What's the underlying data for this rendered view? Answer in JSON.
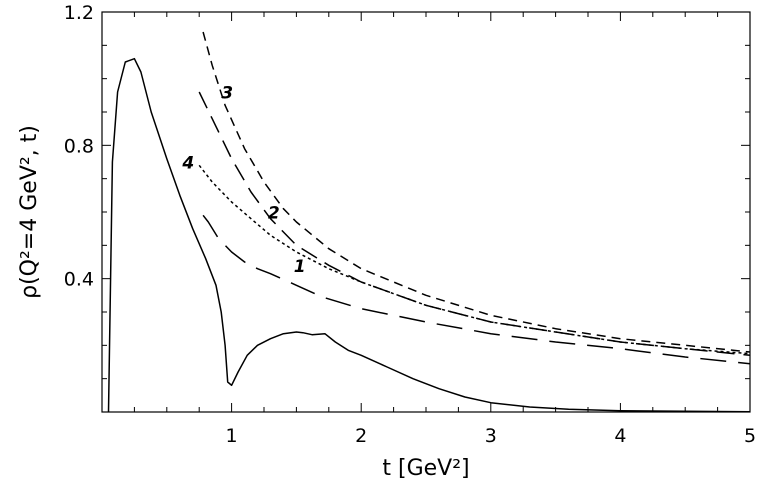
{
  "chart_data": {
    "type": "line",
    "xlabel": "t [GeV²]",
    "ylabel": "ρ(Q²=4 GeV², t)",
    "xlim": [
      0,
      5
    ],
    "ylim": [
      0,
      1.2
    ],
    "x_ticks": [
      1,
      2,
      3,
      4,
      5
    ],
    "x_tick_labels": [
      "1",
      "2",
      "3",
      "4",
      "5"
    ],
    "y_ticks": [
      0.4,
      0.8,
      1.2
    ],
    "y_tick_labels": [
      "0.4",
      "0.8",
      "1.2"
    ],
    "grid": false,
    "series": [
      {
        "name": "",
        "style": "solid",
        "x": [
          0.05,
          0.08,
          0.12,
          0.18,
          0.25,
          0.3,
          0.38,
          0.5,
          0.6,
          0.7,
          0.8,
          0.88,
          0.92,
          0.95,
          0.97,
          1.0,
          1.05,
          1.12,
          1.2,
          1.3,
          1.4,
          1.5,
          1.55,
          1.62,
          1.72,
          1.8,
          1.9,
          2.0,
          2.2,
          2.4,
          2.6,
          2.8,
          3.0,
          3.3,
          3.6,
          4.0,
          4.5,
          5.0
        ],
        "y": [
          0.0,
          0.75,
          0.96,
          1.05,
          1.06,
          1.02,
          0.9,
          0.76,
          0.65,
          0.55,
          0.46,
          0.38,
          0.3,
          0.2,
          0.09,
          0.08,
          0.12,
          0.17,
          0.2,
          0.22,
          0.235,
          0.24,
          0.238,
          0.232,
          0.235,
          0.21,
          0.185,
          0.17,
          0.135,
          0.1,
          0.07,
          0.045,
          0.028,
          0.015,
          0.008,
          0.004,
          0.002,
          0.001
        ]
      },
      {
        "name": "1",
        "style": "long-dash",
        "x": [
          0.78,
          0.82,
          0.9,
          1.0,
          1.1,
          1.2,
          1.3,
          1.5,
          1.7,
          2.0,
          2.5,
          3.0,
          3.5,
          4.0,
          4.5,
          5.0
        ],
        "y": [
          0.59,
          0.57,
          0.52,
          0.48,
          0.45,
          0.43,
          0.415,
          0.38,
          0.345,
          0.31,
          0.27,
          0.235,
          0.21,
          0.19,
          0.165,
          0.145
        ]
      },
      {
        "name": "2",
        "style": "dash",
        "x": [
          0.75,
          0.85,
          1.0,
          1.15,
          1.3,
          1.5,
          1.75,
          2.0,
          2.5,
          3.0,
          3.5,
          4.0,
          4.5,
          5.0
        ],
        "y": [
          0.96,
          0.88,
          0.76,
          0.66,
          0.58,
          0.5,
          0.44,
          0.39,
          0.32,
          0.27,
          0.24,
          0.21,
          0.19,
          0.17
        ]
      },
      {
        "name": "3",
        "style": "short-dash",
        "x": [
          0.78,
          0.85,
          0.95,
          1.1,
          1.25,
          1.4,
          1.5,
          1.75,
          2.0,
          2.5,
          3.0,
          3.5,
          4.0,
          4.5,
          5.0
        ],
        "y": [
          1.14,
          1.04,
          0.92,
          0.79,
          0.69,
          0.61,
          0.57,
          0.49,
          0.43,
          0.35,
          0.29,
          0.25,
          0.22,
          0.2,
          0.18
        ]
      },
      {
        "name": "4",
        "style": "dotted",
        "x": [
          0.75,
          0.85,
          1.0,
          1.15,
          1.3,
          1.5,
          1.75,
          2.0,
          2.5,
          3.0,
          3.5,
          4.0,
          4.5,
          5.0
        ],
        "y": [
          0.74,
          0.69,
          0.63,
          0.58,
          0.53,
          0.48,
          0.43,
          0.39,
          0.32,
          0.27,
          0.24,
          0.21,
          0.19,
          0.175
        ]
      }
    ]
  }
}
